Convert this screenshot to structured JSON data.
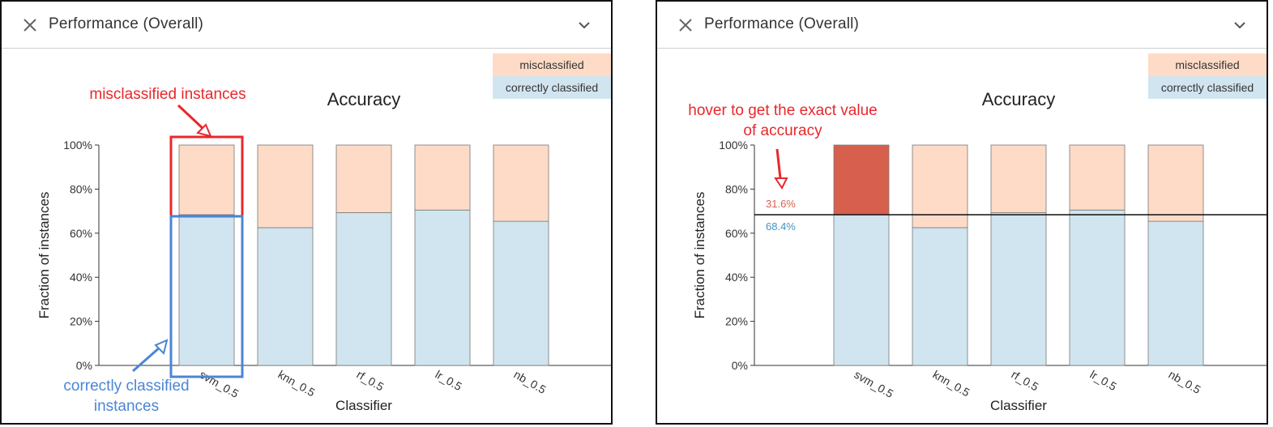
{
  "panels": [
    {
      "id": "left",
      "title": "Performance (Overall)",
      "legend": [
        "misclassified",
        "correctly classified"
      ],
      "annotations": {
        "misclassified": "misclassified instances",
        "correct_line1": "correctly classified",
        "correct_line2": "instances"
      },
      "chart_data": {
        "type": "bar",
        "stacked": true,
        "title": "Accuracy",
        "xlabel": "Classifier",
        "ylabel": "Fraction of instances",
        "categories": [
          "svm_0.5",
          "knn_0.5",
          "rf_0.5",
          "lr_0.5",
          "nb_0.5"
        ],
        "series": [
          {
            "name": "correctly classified",
            "values": [
              68.4,
              62.5,
              69.3,
              70.5,
              65.4
            ]
          },
          {
            "name": "misclassified",
            "values": [
              31.6,
              37.5,
              30.7,
              29.5,
              34.6
            ]
          }
        ],
        "ylim": [
          0,
          100
        ],
        "yticks": [
          "0%",
          "20%",
          "40%",
          "60%",
          "80%",
          "100%"
        ],
        "colors": {
          "correct": "#d1e5f0",
          "mis": "#fddbc7"
        },
        "grid": false,
        "legend_position": "top-right"
      }
    },
    {
      "id": "right",
      "title": "Performance (Overall)",
      "legend": [
        "misclassified",
        "correctly classified"
      ],
      "annotations": {
        "hover_line1": "hover to get the exact value",
        "hover_line2": "of accuracy"
      },
      "hover": {
        "mis_value": "31.6%",
        "correct_value": "68.4%",
        "highlighted_index": 0,
        "highlight_color": "#d6604d",
        "mis_text_color": "#d6604d",
        "correct_text_color": "#4393c3"
      },
      "chart_data": {
        "type": "bar",
        "stacked": true,
        "title": "Accuracy",
        "xlabel": "Classifier",
        "ylabel": "Fraction of instances",
        "categories": [
          "svm_0.5",
          "knn_0.5",
          "rf_0.5",
          "lr_0.5",
          "nb_0.5"
        ],
        "series": [
          {
            "name": "correctly classified",
            "values": [
              68.4,
              62.5,
              69.3,
              70.5,
              65.4
            ]
          },
          {
            "name": "misclassified",
            "values": [
              31.6,
              37.5,
              30.7,
              29.5,
              34.6
            ]
          }
        ],
        "ylim": [
          0,
          100
        ],
        "yticks": [
          "0%",
          "20%",
          "40%",
          "60%",
          "80%",
          "100%"
        ],
        "reference_line": 68.4,
        "colors": {
          "correct": "#d1e5f0",
          "mis": "#fddbc7"
        },
        "grid": false,
        "legend_position": "top-right"
      }
    }
  ]
}
